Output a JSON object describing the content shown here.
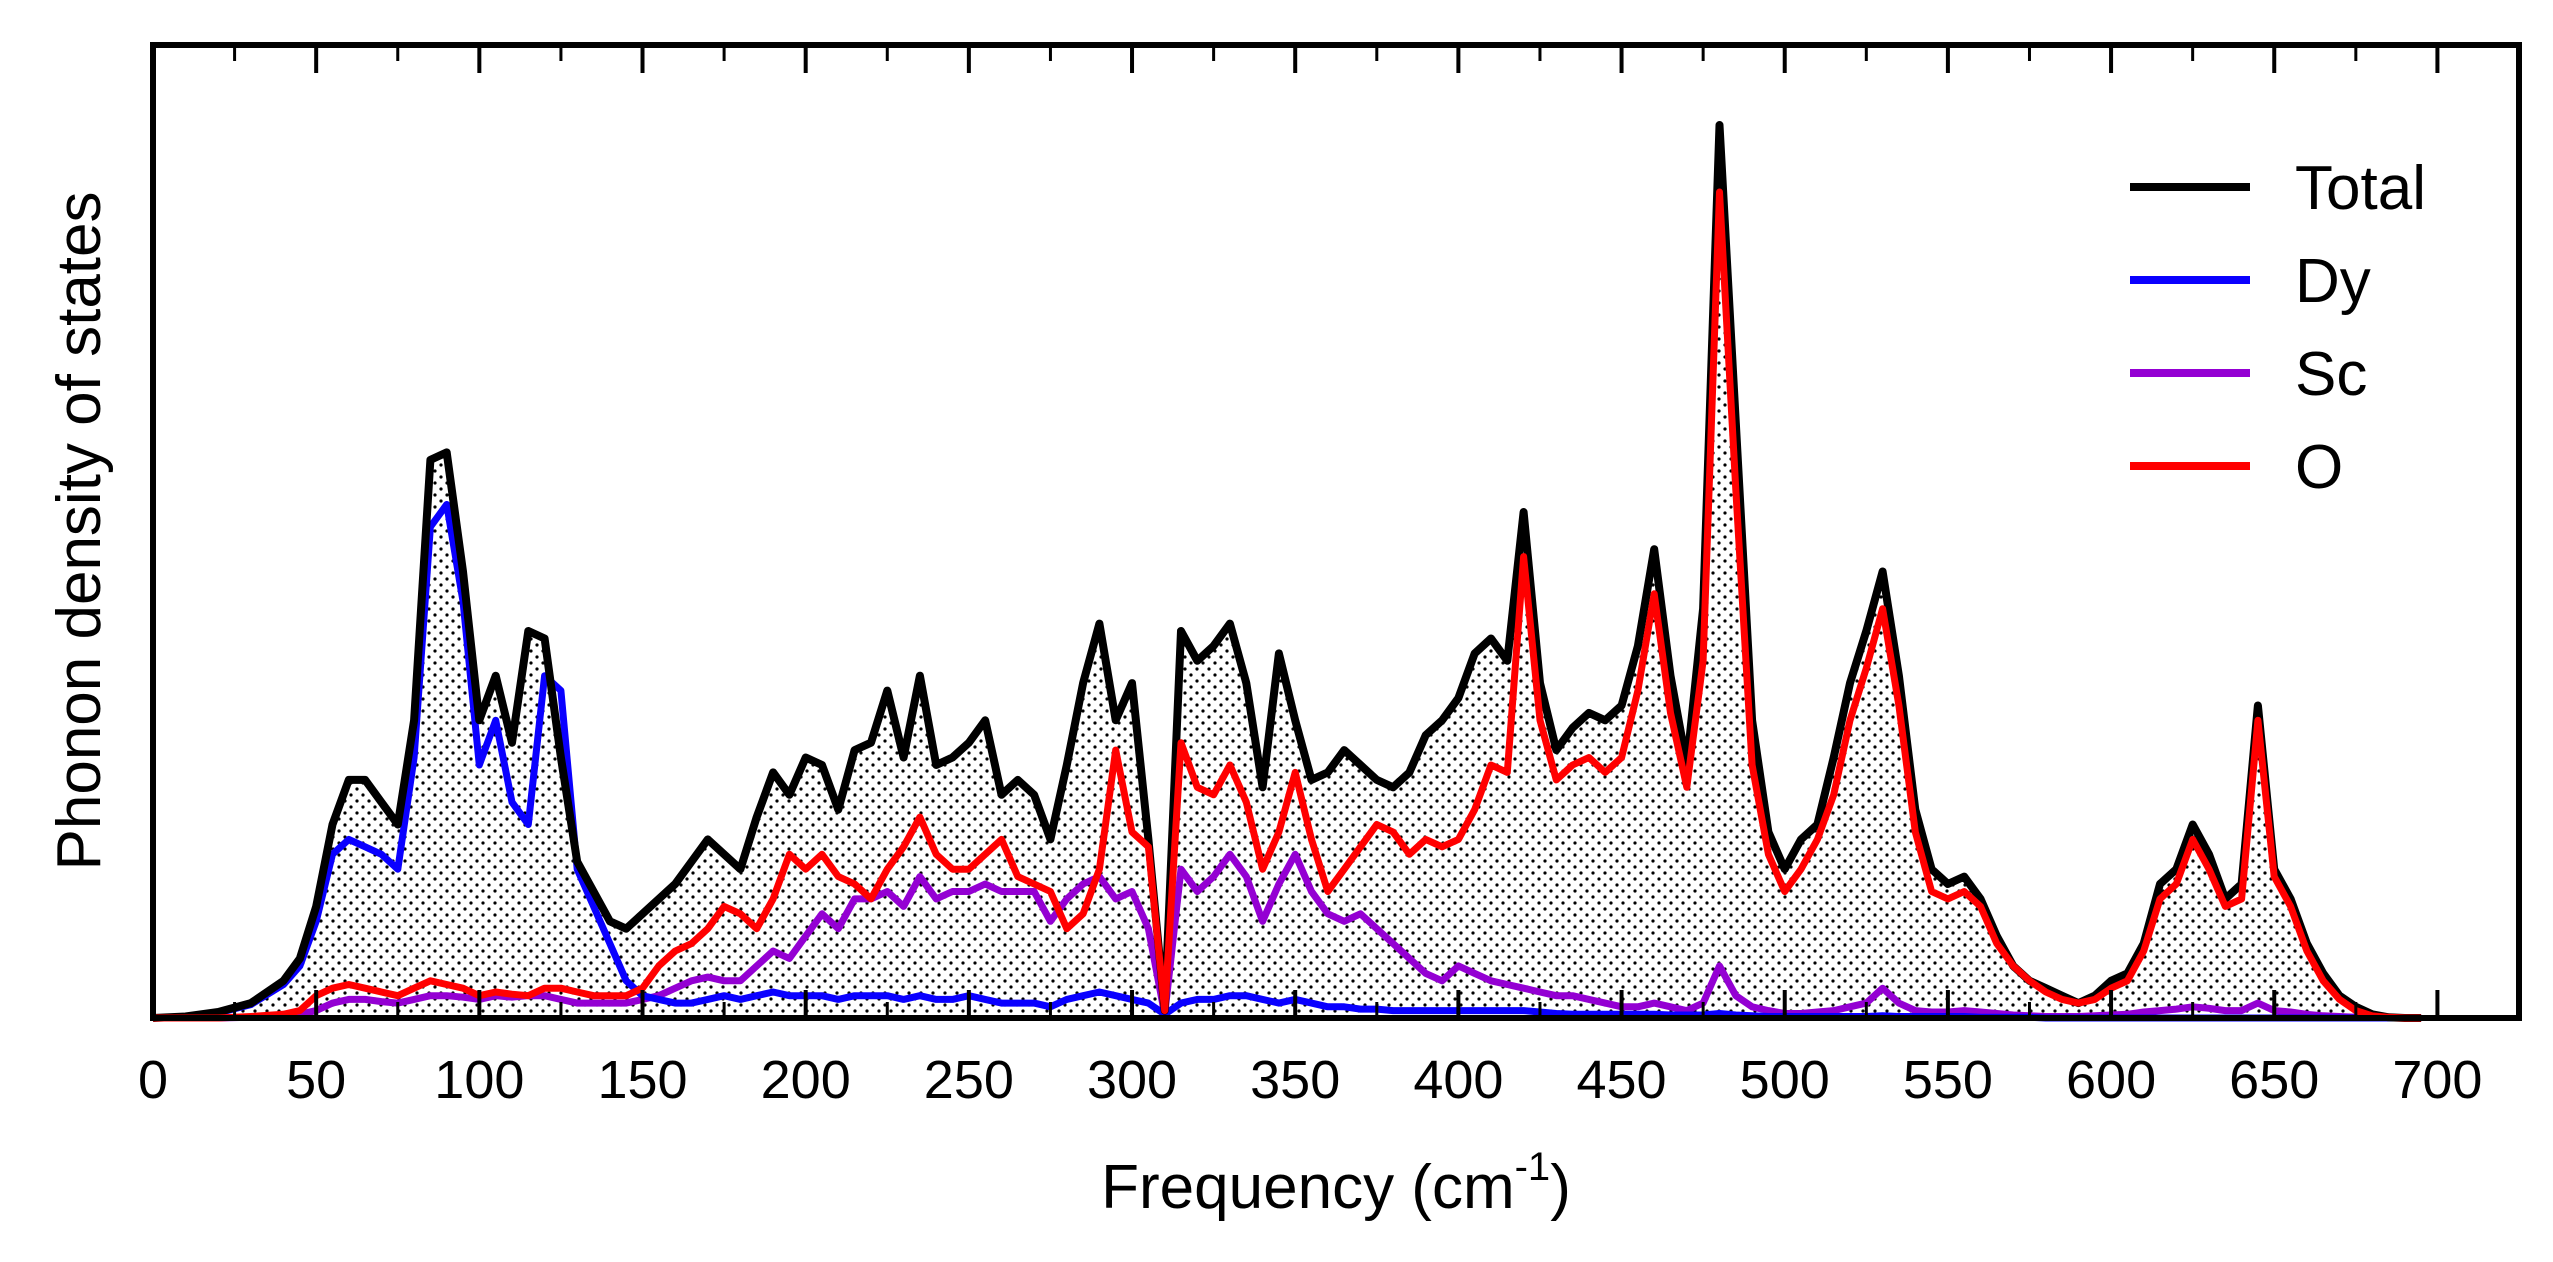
{
  "chart_data": {
    "type": "line",
    "title": "",
    "xlabel": "Frequency (cm",
    "xlabel_sup": "-1",
    "xlabel_close": ")",
    "ylabel": "Phonon density of states",
    "xlim": [
      0,
      725
    ],
    "ylim": [
      0,
      1.2
    ],
    "xticks": [
      0,
      50,
      100,
      150,
      200,
      250,
      300,
      350,
      400,
      450,
      500,
      550,
      600,
      650,
      700
    ],
    "xtick_labels": [
      "0",
      "50",
      "100",
      "150",
      "200",
      "250",
      "300",
      "350",
      "400",
      "450",
      "500",
      "550",
      "600",
      "650",
      "700"
    ],
    "grid": false,
    "legend_position": "top-right",
    "fill_under": "Total",
    "x": [
      0,
      10,
      20,
      30,
      40,
      45,
      50,
      55,
      60,
      65,
      70,
      75,
      80,
      85,
      90,
      95,
      100,
      105,
      110,
      115,
      120,
      125,
      130,
      135,
      140,
      145,
      150,
      155,
      160,
      165,
      170,
      175,
      180,
      185,
      190,
      195,
      200,
      205,
      210,
      215,
      220,
      225,
      230,
      235,
      240,
      245,
      250,
      255,
      260,
      265,
      270,
      275,
      280,
      285,
      290,
      295,
      300,
      305,
      310,
      315,
      320,
      325,
      330,
      335,
      340,
      345,
      350,
      355,
      360,
      365,
      370,
      375,
      380,
      385,
      390,
      395,
      400,
      405,
      410,
      415,
      420,
      425,
      430,
      435,
      440,
      445,
      450,
      455,
      460,
      465,
      470,
      475,
      480,
      485,
      490,
      495,
      500,
      505,
      510,
      515,
      520,
      525,
      530,
      535,
      540,
      545,
      550,
      555,
      560,
      565,
      570,
      575,
      580,
      585,
      590,
      595,
      600,
      605,
      610,
      615,
      620,
      625,
      630,
      635,
      640,
      645,
      650,
      655,
      660,
      665,
      670,
      675,
      680,
      685,
      690,
      695
    ],
    "series": [
      {
        "name": "Total",
        "color": "#000000",
        "values": [
          0,
          0.002,
          0.008,
          0.02,
          0.05,
          0.08,
          0.15,
          0.26,
          0.32,
          0.32,
          0.29,
          0.26,
          0.4,
          0.75,
          0.76,
          0.6,
          0.4,
          0.46,
          0.37,
          0.52,
          0.51,
          0.35,
          0.21,
          0.17,
          0.13,
          0.12,
          0.14,
          0.16,
          0.18,
          0.21,
          0.24,
          0.22,
          0.2,
          0.27,
          0.33,
          0.3,
          0.35,
          0.34,
          0.28,
          0.36,
          0.37,
          0.44,
          0.35,
          0.46,
          0.34,
          0.35,
          0.37,
          0.4,
          0.3,
          0.32,
          0.3,
          0.24,
          0.34,
          0.45,
          0.53,
          0.4,
          0.45,
          0.24,
          0.01,
          0.52,
          0.48,
          0.5,
          0.53,
          0.45,
          0.31,
          0.49,
          0.4,
          0.32,
          0.33,
          0.36,
          0.34,
          0.32,
          0.31,
          0.33,
          0.38,
          0.4,
          0.43,
          0.49,
          0.51,
          0.48,
          0.68,
          0.45,
          0.36,
          0.39,
          0.41,
          0.4,
          0.42,
          0.5,
          0.63,
          0.46,
          0.34,
          0.55,
          1.2,
          0.8,
          0.4,
          0.25,
          0.2,
          0.24,
          0.26,
          0.35,
          0.45,
          0.52,
          0.6,
          0.46,
          0.28,
          0.2,
          0.18,
          0.19,
          0.16,
          0.11,
          0.07,
          0.05,
          0.04,
          0.03,
          0.02,
          0.03,
          0.05,
          0.06,
          0.1,
          0.18,
          0.2,
          0.26,
          0.22,
          0.16,
          0.18,
          0.42,
          0.2,
          0.16,
          0.1,
          0.06,
          0.03,
          0.015,
          0.005,
          0.001,
          0,
          0
        ]
      },
      {
        "name": "Dy",
        "color": "#0a00ff",
        "values": [
          0,
          0.002,
          0.007,
          0.018,
          0.045,
          0.07,
          0.13,
          0.22,
          0.24,
          0.23,
          0.22,
          0.2,
          0.35,
          0.66,
          0.69,
          0.56,
          0.34,
          0.4,
          0.29,
          0.26,
          0.46,
          0.44,
          0.2,
          0.15,
          0.1,
          0.05,
          0.03,
          0.025,
          0.02,
          0.02,
          0.025,
          0.03,
          0.025,
          0.03,
          0.035,
          0.03,
          0.03,
          0.03,
          0.025,
          0.03,
          0.03,
          0.03,
          0.025,
          0.03,
          0.025,
          0.025,
          0.03,
          0.025,
          0.02,
          0.02,
          0.02,
          0.015,
          0.025,
          0.03,
          0.035,
          0.03,
          0.025,
          0.02,
          0.005,
          0.02,
          0.025,
          0.025,
          0.03,
          0.03,
          0.025,
          0.02,
          0.025,
          0.02,
          0.015,
          0.015,
          0.012,
          0.012,
          0.01,
          0.01,
          0.01,
          0.01,
          0.01,
          0.01,
          0.01,
          0.01,
          0.01,
          0.008,
          0.006,
          0.005,
          0.005,
          0.005,
          0.005,
          0.005,
          0.005,
          0.004,
          0.004,
          0.004,
          0.006,
          0.004,
          0.003,
          0.002,
          0.002,
          0.002,
          0.002,
          0.002,
          0.002,
          0.002,
          0.003,
          0.002,
          0.002,
          0.002,
          0.002,
          0.002,
          0.001,
          0.001,
          0.001,
          0.001,
          0,
          0,
          0,
          0,
          0,
          0,
          0,
          0,
          0,
          0,
          0,
          0,
          0,
          0,
          0,
          0,
          0,
          0,
          0,
          0,
          0,
          0,
          0,
          0
        ]
      },
      {
        "name": "Sc",
        "color": "#9400d3",
        "values": [
          0,
          0,
          0,
          0.001,
          0.003,
          0.005,
          0.01,
          0.02,
          0.025,
          0.025,
          0.022,
          0.02,
          0.025,
          0.03,
          0.03,
          0.028,
          0.025,
          0.03,
          0.028,
          0.03,
          0.03,
          0.025,
          0.02,
          0.02,
          0.02,
          0.02,
          0.025,
          0.03,
          0.04,
          0.05,
          0.055,
          0.05,
          0.05,
          0.07,
          0.09,
          0.08,
          0.11,
          0.14,
          0.12,
          0.16,
          0.16,
          0.17,
          0.15,
          0.19,
          0.16,
          0.17,
          0.17,
          0.18,
          0.17,
          0.17,
          0.17,
          0.13,
          0.16,
          0.18,
          0.19,
          0.16,
          0.17,
          0.12,
          0.005,
          0.2,
          0.17,
          0.19,
          0.22,
          0.19,
          0.13,
          0.18,
          0.22,
          0.17,
          0.14,
          0.13,
          0.14,
          0.12,
          0.1,
          0.08,
          0.06,
          0.05,
          0.07,
          0.06,
          0.05,
          0.045,
          0.04,
          0.035,
          0.03,
          0.03,
          0.025,
          0.02,
          0.015,
          0.015,
          0.02,
          0.015,
          0.01,
          0.02,
          0.07,
          0.03,
          0.015,
          0.01,
          0.006,
          0.006,
          0.008,
          0.01,
          0.015,
          0.02,
          0.04,
          0.02,
          0.01,
          0.008,
          0.008,
          0.01,
          0.008,
          0.006,
          0.004,
          0.003,
          0.002,
          0.002,
          0.002,
          0.003,
          0.004,
          0.005,
          0.008,
          0.01,
          0.012,
          0.015,
          0.013,
          0.01,
          0.01,
          0.02,
          0.01,
          0.008,
          0.005,
          0.003,
          0.002,
          0.001,
          0,
          0,
          0,
          0
        ]
      },
      {
        "name": "O",
        "color": "#ff0000",
        "values": [
          0,
          0,
          0,
          0.002,
          0.005,
          0.01,
          0.03,
          0.04,
          0.045,
          0.04,
          0.035,
          0.03,
          0.04,
          0.05,
          0.045,
          0.04,
          0.03,
          0.035,
          0.032,
          0.03,
          0.04,
          0.04,
          0.035,
          0.03,
          0.03,
          0.03,
          0.04,
          0.07,
          0.09,
          0.1,
          0.12,
          0.15,
          0.14,
          0.12,
          0.16,
          0.22,
          0.2,
          0.22,
          0.19,
          0.18,
          0.16,
          0.2,
          0.23,
          0.27,
          0.22,
          0.2,
          0.2,
          0.22,
          0.24,
          0.19,
          0.18,
          0.17,
          0.12,
          0.14,
          0.2,
          0.36,
          0.25,
          0.23,
          0.01,
          0.37,
          0.31,
          0.3,
          0.34,
          0.29,
          0.2,
          0.25,
          0.33,
          0.24,
          0.17,
          0.2,
          0.23,
          0.26,
          0.25,
          0.22,
          0.24,
          0.23,
          0.24,
          0.28,
          0.34,
          0.33,
          0.62,
          0.4,
          0.32,
          0.34,
          0.35,
          0.33,
          0.35,
          0.44,
          0.57,
          0.41,
          0.31,
          0.48,
          1.11,
          0.71,
          0.34,
          0.22,
          0.17,
          0.2,
          0.24,
          0.3,
          0.4,
          0.47,
          0.55,
          0.42,
          0.25,
          0.17,
          0.16,
          0.17,
          0.15,
          0.1,
          0.07,
          0.05,
          0.035,
          0.025,
          0.02,
          0.025,
          0.04,
          0.05,
          0.09,
          0.16,
          0.18,
          0.24,
          0.2,
          0.15,
          0.16,
          0.4,
          0.19,
          0.15,
          0.09,
          0.05,
          0.025,
          0.01,
          0.003,
          0.001,
          0,
          0
        ]
      }
    ]
  }
}
